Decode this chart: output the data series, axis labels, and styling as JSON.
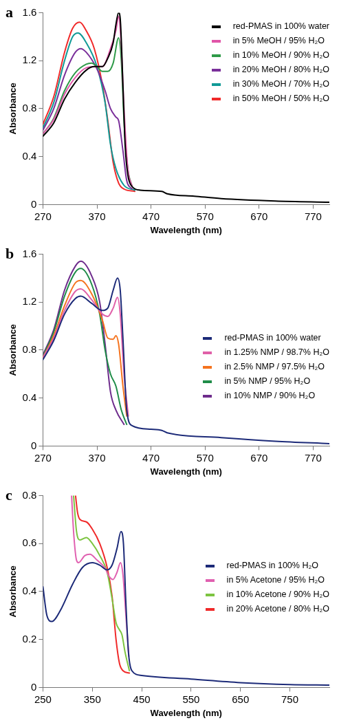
{
  "chart_data": [
    {
      "type": "line",
      "title": "a",
      "xlabel": "Wavelength (nm)",
      "ylabel": "Absorbance",
      "xlim": [
        270,
        800
      ],
      "xticks": [
        270,
        370,
        470,
        570,
        670,
        770
      ],
      "ylim": [
        0,
        1.6
      ],
      "yticks": [
        0,
        0.4,
        0.8,
        1.2,
        1.6
      ],
      "grid": false,
      "legend": "top right",
      "marker": "none",
      "line_style": "solid",
      "series": [
        {
          "name": "red-PMAS in 100% water",
          "color": "#000000",
          "x": [
            270,
            290,
            310,
            330,
            350,
            365,
            380,
            390,
            400,
            405,
            410,
            413,
            418,
            422,
            427,
            435,
            450,
            490,
            500,
            550,
            600,
            700,
            800
          ],
          "values": [
            0.57,
            0.68,
            0.88,
            1.02,
            1.12,
            1.15,
            1.15,
            1.22,
            1.35,
            1.5,
            1.6,
            1.55,
            1.0,
            0.5,
            0.25,
            0.15,
            0.12,
            0.11,
            0.09,
            0.07,
            0.05,
            0.03,
            0.02
          ]
        },
        {
          "name": "in 5% MeOH / 95% H₂O",
          "color": "#e055a8",
          "x": [
            270,
            290,
            310,
            330,
            350,
            370,
            380,
            395,
            405,
            410,
            414,
            420,
            427,
            435
          ],
          "values": [
            0.59,
            0.71,
            0.92,
            1.06,
            1.14,
            1.15,
            1.15,
            1.3,
            1.45,
            1.57,
            1.4,
            0.8,
            0.3,
            0.15
          ]
        },
        {
          "name": "in 10% MeOH / 90% H₂O",
          "color": "#2e9a48",
          "x": [
            270,
            290,
            310,
            330,
            350,
            360,
            370,
            380,
            390,
            400,
            410,
            415,
            420,
            427,
            435
          ],
          "values": [
            0.59,
            0.72,
            0.95,
            1.1,
            1.17,
            1.18,
            1.15,
            1.11,
            1.11,
            1.18,
            1.39,
            1.2,
            0.7,
            0.3,
            0.15
          ]
        },
        {
          "name": "in 20% MeOH / 80% H₂O",
          "color": "#7a2f9a",
          "x": [
            270,
            290,
            310,
            330,
            340,
            350,
            370,
            385,
            395,
            405,
            410,
            418,
            425,
            435
          ],
          "values": [
            0.62,
            0.8,
            1.08,
            1.27,
            1.3,
            1.27,
            1.13,
            0.95,
            0.8,
            0.73,
            0.7,
            0.45,
            0.2,
            0.13
          ]
        },
        {
          "name": "in 30% MeOH / 70% H₂O",
          "color": "#109a96",
          "x": [
            270,
            290,
            310,
            325,
            335,
            350,
            370,
            385,
            395,
            405,
            420,
            440
          ],
          "values": [
            0.64,
            0.85,
            1.2,
            1.4,
            1.43,
            1.35,
            1.15,
            0.85,
            0.5,
            0.3,
            0.16,
            0.12
          ]
        },
        {
          "name": "in 50% MeOH / 50% H₂O",
          "color": "#f02a2a",
          "x": [
            270,
            290,
            310,
            325,
            338,
            350,
            365,
            380,
            390,
            400,
            410,
            420,
            440
          ],
          "values": [
            0.67,
            0.9,
            1.27,
            1.47,
            1.52,
            1.45,
            1.3,
            1.0,
            0.7,
            0.35,
            0.18,
            0.13,
            0.11
          ]
        }
      ]
    },
    {
      "type": "line",
      "title": "b",
      "xlabel": "Wavelength (nm)",
      "ylabel": "Absorbance",
      "xlim": [
        270,
        800
      ],
      "xticks": [
        270,
        370,
        470,
        570,
        670,
        770
      ],
      "ylim": [
        0,
        1.6
      ],
      "yticks": [
        0,
        0.4,
        0.8,
        1.2,
        1.6
      ],
      "grid": false,
      "legend": "right",
      "marker": "none",
      "line_style": "solid",
      "series": [
        {
          "name": "red-PMAS in 100% water",
          "color": "#1c2a78",
          "x": [
            270,
            290,
            310,
            330,
            340,
            360,
            380,
            390,
            400,
            408,
            413,
            418,
            425,
            435,
            470,
            490,
            500,
            600,
            700,
            800
          ],
          "values": [
            0.72,
            0.88,
            1.1,
            1.23,
            1.25,
            1.19,
            1.13,
            1.15,
            1.3,
            1.4,
            1.3,
            0.9,
            0.3,
            0.17,
            0.14,
            0.13,
            0.11,
            0.07,
            0.04,
            0.02
          ]
        },
        {
          "name": "in 1.25% NMP / 98.7% H₂O",
          "color": "#e060a8",
          "x": [
            270,
            290,
            310,
            330,
            340,
            360,
            380,
            390,
            400,
            408,
            413,
            420,
            428
          ],
          "values": [
            0.74,
            0.9,
            1.13,
            1.29,
            1.31,
            1.22,
            1.1,
            1.08,
            1.15,
            1.24,
            1.1,
            0.6,
            0.25
          ]
        },
        {
          "name": "in 2.5% NMP / 97.5% H₂O",
          "color": "#f5731e",
          "x": [
            270,
            290,
            310,
            330,
            340,
            360,
            380,
            390,
            400,
            405,
            410,
            418,
            425
          ],
          "values": [
            0.74,
            0.92,
            1.17,
            1.36,
            1.38,
            1.27,
            1.05,
            0.9,
            0.89,
            0.92,
            0.85,
            0.5,
            0.25
          ]
        },
        {
          "name": "in 5% NMP / 95% H₂O",
          "color": "#1f8c48",
          "x": [
            270,
            290,
            310,
            330,
            340,
            360,
            375,
            385,
            395,
            405,
            415,
            425
          ],
          "values": [
            0.75,
            0.95,
            1.25,
            1.45,
            1.48,
            1.35,
            1.1,
            0.8,
            0.6,
            0.5,
            0.3,
            0.18
          ]
        },
        {
          "name": "in 10% NMP / 90% H₂O",
          "color": "#6e2c8c",
          "x": [
            270,
            290,
            310,
            330,
            340,
            360,
            375,
            385,
            395,
            405,
            420
          ],
          "values": [
            0.76,
            0.97,
            1.3,
            1.5,
            1.54,
            1.42,
            1.2,
            0.85,
            0.45,
            0.3,
            0.18
          ]
        }
      ]
    },
    {
      "type": "line",
      "title": "c",
      "xlabel": "Wavelength (nm)",
      "ylabel": "Absorbance",
      "xlim": [
        250,
        830
      ],
      "xticks": [
        250,
        350,
        450,
        550,
        650,
        750
      ],
      "ylim": [
        0,
        0.8
      ],
      "yticks": [
        0,
        0.2,
        0.4,
        0.6,
        0.8
      ],
      "grid": false,
      "legend": "right",
      "marker": "none",
      "line_style": "solid",
      "series": [
        {
          "name": "red-PMAS in 100% H₂O",
          "color": "#1c2a78",
          "x": [
            250,
            258,
            268,
            285,
            310,
            330,
            350,
            365,
            380,
            390,
            400,
            408,
            413,
            418,
            423,
            430,
            450,
            550,
            650,
            750,
            830
          ],
          "values": [
            0.42,
            0.3,
            0.275,
            0.32,
            0.43,
            0.5,
            0.52,
            0.51,
            0.49,
            0.51,
            0.58,
            0.65,
            0.6,
            0.35,
            0.15,
            0.07,
            0.05,
            0.035,
            0.02,
            0.012,
            0.01
          ]
        },
        {
          "name": "in 5% Acetone / 95% H₂O",
          "color": "#e060b0",
          "x": [
            308,
            312,
            318,
            322,
            335,
            345,
            360,
            375,
            385,
            392,
            400,
            407,
            412,
            418,
            424
          ],
          "values": [
            0.8,
            0.65,
            0.53,
            0.52,
            0.55,
            0.555,
            0.53,
            0.5,
            0.46,
            0.45,
            0.48,
            0.52,
            0.47,
            0.3,
            0.13
          ]
        },
        {
          "name": "in 10% Acetone / 90% H₂O",
          "color": "#7cc440",
          "x": [
            312,
            318,
            325,
            338,
            350,
            365,
            380,
            390,
            398,
            405,
            410,
            416,
            425
          ],
          "values": [
            0.8,
            0.65,
            0.615,
            0.625,
            0.6,
            0.55,
            0.48,
            0.37,
            0.27,
            0.24,
            0.22,
            0.15,
            0.07
          ]
        },
        {
          "name": "in 20% Acetone / 80% H₂O",
          "color": "#f02a2a",
          "x": [
            316,
            320,
            325,
            338,
            350,
            365,
            380,
            390,
            398,
            405,
            412,
            425
          ],
          "values": [
            0.8,
            0.73,
            0.7,
            0.69,
            0.66,
            0.6,
            0.5,
            0.38,
            0.2,
            0.1,
            0.07,
            0.06
          ]
        }
      ]
    }
  ]
}
